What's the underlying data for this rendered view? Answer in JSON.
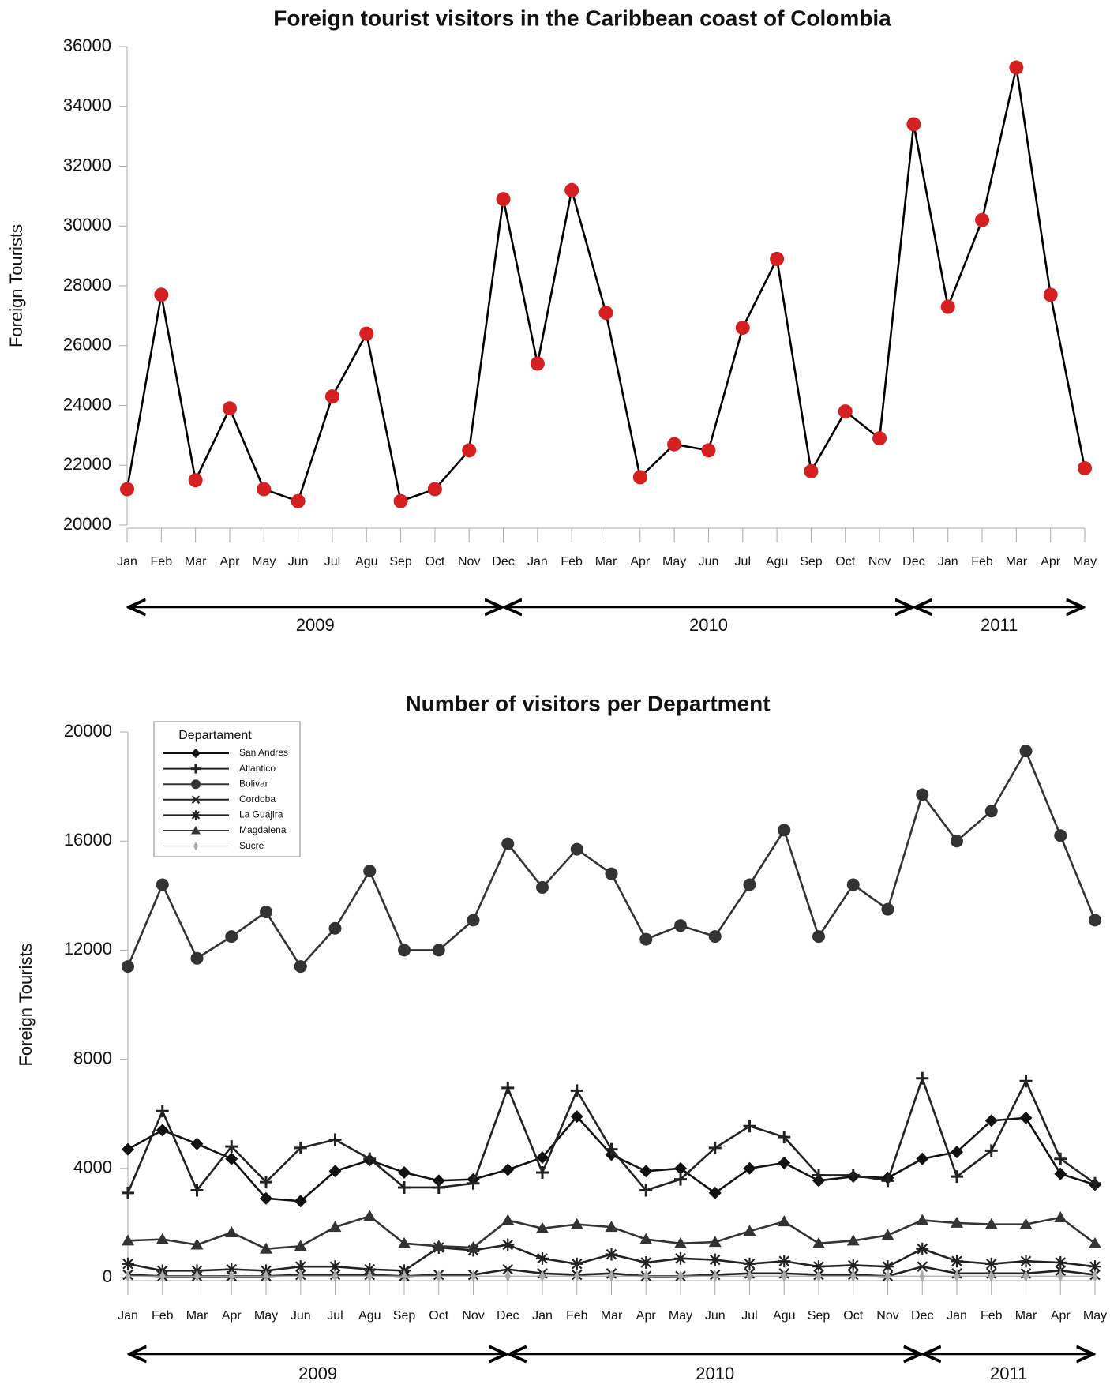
{
  "chart_data": [
    {
      "type": "line",
      "title": "Foreign tourist visitors in the Caribbean coast of Colombia",
      "ylabel": "Foreign Tourists",
      "categories": [
        "Jan",
        "Feb",
        "Mar",
        "Apr",
        "May",
        "Jun",
        "Jul",
        "Agu",
        "Sep",
        "Oct",
        "Nov",
        "Dec",
        "Jan",
        "Feb",
        "Mar",
        "Apr",
        "May",
        "Jun",
        "Jul",
        "Agu",
        "Sep",
        "Oct",
        "Nov",
        "Dec",
        "Jan",
        "Feb",
        "Mar",
        "Apr",
        "May"
      ],
      "x_groups": [
        "2009",
        "2010",
        "2011"
      ],
      "series": [
        {
          "name": null,
          "color": "#000000",
          "marker_color": "#d42020",
          "marker": "circle",
          "values": [
            21200,
            27700,
            21500,
            23900,
            21200,
            20800,
            24300,
            26400,
            20800,
            21200,
            22500,
            30900,
            25400,
            31200,
            27100,
            21600,
            22700,
            22500,
            26600,
            28900,
            21800,
            23800,
            22900,
            33400,
            27300,
            30200,
            35300,
            27700,
            21900
          ]
        }
      ],
      "ylim": [
        20000,
        36000
      ],
      "yticks": [
        20000,
        22000,
        24000,
        26000,
        28000,
        30000,
        32000,
        34000,
        36000
      ]
    },
    {
      "type": "line",
      "title": "Number of visitors per Department",
      "ylabel": "Foreign Tourists",
      "categories": [
        "Jan",
        "Feb",
        "Mar",
        "Apr",
        "May",
        "Jun",
        "Jul",
        "Agu",
        "Sep",
        "Oct",
        "Nov",
        "Dec",
        "Jan",
        "Feb",
        "Mar",
        "Apr",
        "May",
        "Jun",
        "Jul",
        "Agu",
        "Sep",
        "Oct",
        "Nov",
        "Dec",
        "Jan",
        "Feb",
        "Mar",
        "Apr",
        "May"
      ],
      "x_groups": [
        "2009",
        "2010",
        "2011"
      ],
      "legend_title": "Departament",
      "legend": "top-left",
      "series": [
        {
          "name": "San Andres",
          "color": "#111111",
          "marker": "diamond",
          "values": [
            4700,
            5400,
            4900,
            4350,
            2900,
            2800,
            3900,
            4300,
            3850,
            3550,
            3600,
            3950,
            4400,
            5900,
            4500,
            3900,
            4000,
            3100,
            4000,
            4200,
            3550,
            3700,
            3650,
            4350,
            4600,
            5750,
            5850,
            3800,
            3400
          ]
        },
        {
          "name": "Atlantico",
          "color": "#222222",
          "marker": "plus",
          "values": [
            3100,
            6100,
            3200,
            4800,
            3500,
            4750,
            5050,
            4350,
            3300,
            3300,
            3450,
            6950,
            3850,
            6850,
            4700,
            3200,
            3600,
            4750,
            5550,
            5150,
            3750,
            3750,
            3550,
            7300,
            3700,
            4650,
            7200,
            4350,
            3450
          ]
        },
        {
          "name": "Bolivar",
          "color": "#333333",
          "marker": "circle",
          "values": [
            11400,
            14400,
            11700,
            12500,
            13400,
            11400,
            12800,
            14900,
            12000,
            12000,
            13100,
            15900,
            14300,
            15700,
            14800,
            12400,
            12900,
            12500,
            14400,
            16400,
            12500,
            14400,
            13500,
            17700,
            16000,
            17100,
            19300,
            16200,
            13100
          ]
        },
        {
          "name": "Cordoba",
          "color": "#222222",
          "marker": "x",
          "values": [
            100,
            50,
            50,
            50,
            50,
            100,
            100,
            100,
            50,
            100,
            100,
            300,
            150,
            100,
            150,
            50,
            50,
            100,
            150,
            150,
            100,
            100,
            50,
            400,
            150,
            150,
            150,
            250,
            100
          ]
        },
        {
          "name": "La Guajira",
          "color": "#222222",
          "marker": "star",
          "values": [
            500,
            250,
            250,
            300,
            250,
            400,
            400,
            300,
            250,
            1100,
            1000,
            1200,
            700,
            500,
            850,
            550,
            700,
            650,
            500,
            600,
            400,
            450,
            400,
            1050,
            600,
            500,
            600,
            550,
            400
          ]
        },
        {
          "name": "Magdalena",
          "color": "#333333",
          "marker": "triangle",
          "values": [
            1350,
            1400,
            1200,
            1650,
            1050,
            1150,
            1850,
            2250,
            1250,
            1150,
            1100,
            2100,
            1800,
            1950,
            1850,
            1400,
            1250,
            1300,
            1700,
            2050,
            1250,
            1350,
            1550,
            2100,
            2000,
            1950,
            1950,
            2200,
            1250
          ]
        },
        {
          "name": "Sucre",
          "color": "#aaaaaa",
          "marker": "thin-diamond",
          "values": [
            50,
            50,
            50,
            50,
            50,
            50,
            50,
            50,
            50,
            50,
            50,
            50,
            50,
            50,
            50,
            50,
            50,
            50,
            50,
            50,
            50,
            50,
            50,
            50,
            50,
            50,
            50,
            50,
            50
          ]
        }
      ],
      "ylim": [
        0,
        20000
      ],
      "yticks": [
        0,
        4000,
        8000,
        12000,
        16000,
        20000
      ]
    }
  ]
}
